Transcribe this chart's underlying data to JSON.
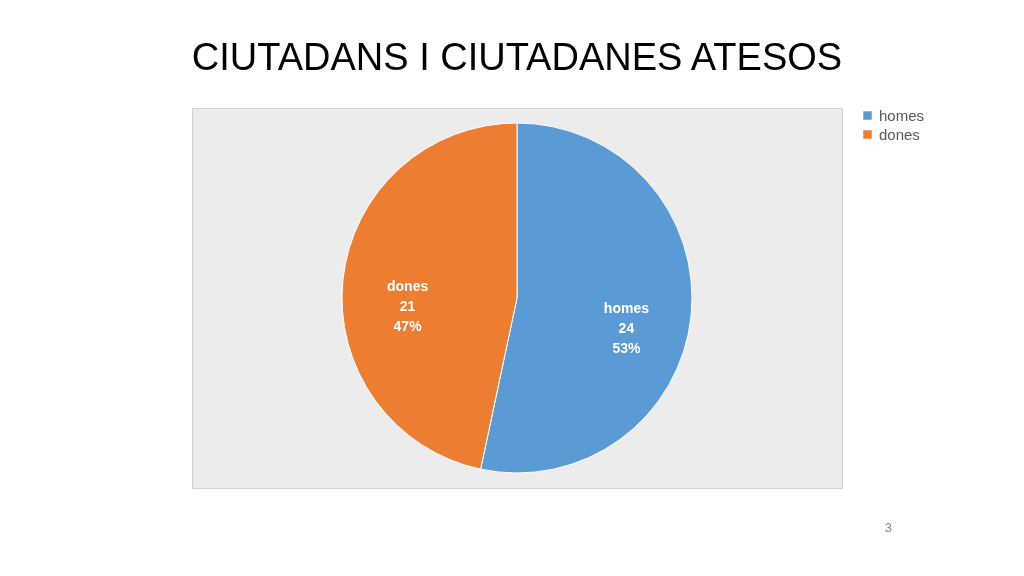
{
  "chart_data": {
    "type": "pie",
    "title": "CIUTADANS I CIUTADANES ATESOS",
    "categories": [
      "homes",
      "dones"
    ],
    "values": [
      24,
      21
    ],
    "colors": [
      "#5b9bd5",
      "#ed7d31"
    ],
    "value_labels": [
      "homes\n24\n53%",
      "dones\n21\n47%"
    ],
    "legend": "right",
    "annotations": [
      "3"
    ]
  }
}
